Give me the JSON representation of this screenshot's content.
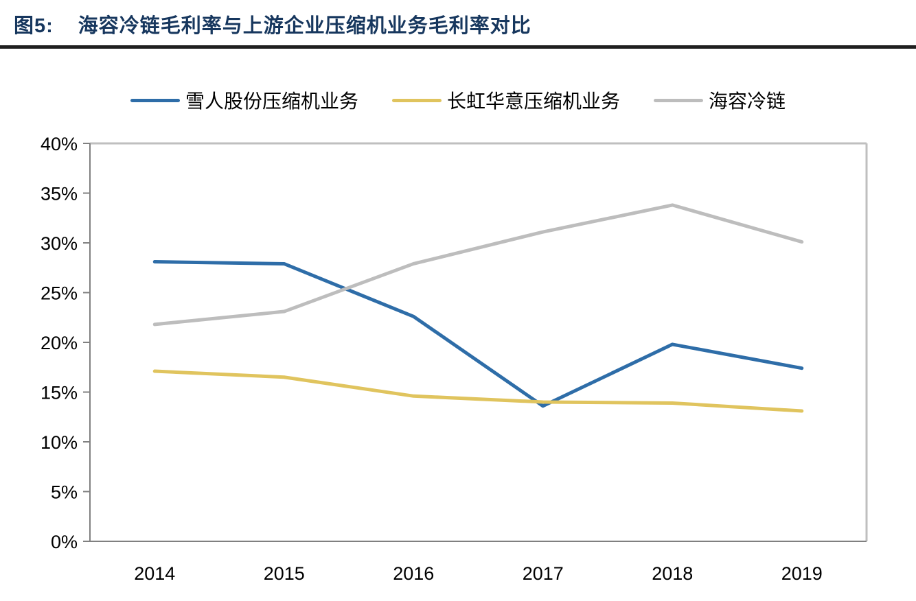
{
  "header": {
    "figure_label": "图5:",
    "title": "海容冷链毛利率与上游企业压缩机业务毛利率对比"
  },
  "colors": {
    "title": "#17375E",
    "rule": "#1F1F1F",
    "axis": "#808080",
    "plot_border": "#BFBFBF",
    "label_text": "#000000",
    "background": "#FFFFFF"
  },
  "chart_data": {
    "type": "line",
    "title": "图5: 海容冷链毛利率与上游企业压缩机业务毛利率对比",
    "categories": [
      "2014",
      "2015",
      "2016",
      "2017",
      "2018",
      "2019"
    ],
    "series": [
      {
        "name": "雪人股份压缩机业务",
        "color": "#2E6DA8",
        "values": [
          28.1,
          27.9,
          22.6,
          13.6,
          19.8,
          17.4
        ]
      },
      {
        "name": "长虹华意压缩机业务",
        "color": "#E0C45E",
        "values": [
          17.1,
          16.5,
          14.6,
          14.0,
          13.9,
          13.1
        ]
      },
      {
        "name": "海容冷链",
        "color": "#BDBDBD",
        "values": [
          21.8,
          23.1,
          27.9,
          31.1,
          33.8,
          30.1
        ]
      }
    ],
    "xlabel": "",
    "ylabel": "",
    "ylim": [
      0,
      40
    ],
    "y_tick_step": 5,
    "y_tick_labels": [
      "0%",
      "5%",
      "10%",
      "15%",
      "20%",
      "25%",
      "30%",
      "35%",
      "40%"
    ],
    "grid": false,
    "legend_position": "top"
  }
}
